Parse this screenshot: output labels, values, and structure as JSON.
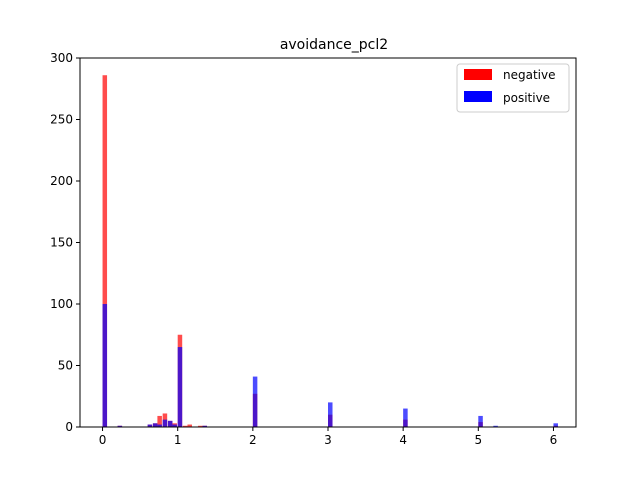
{
  "chart_data": {
    "type": "histogram",
    "title": "avoidance_pcl2",
    "xlabel": "",
    "ylabel": "",
    "xlim": [
      -0.3,
      6.3
    ],
    "ylim": [
      0,
      300
    ],
    "xticks": [
      0,
      1,
      2,
      3,
      4,
      5,
      6
    ],
    "yticks": [
      0,
      50,
      100,
      150,
      200,
      250,
      300
    ],
    "bin_width": 0.06,
    "legend": {
      "placement": "top-right"
    },
    "series": [
      {
        "name": "negative",
        "color": "#ff0000",
        "alpha": 0.7,
        "bins": [
          {
            "x": 0.0,
            "count": 286
          },
          {
            "x": 0.2,
            "count": 1
          },
          {
            "x": 0.6,
            "count": 2
          },
          {
            "x": 0.67,
            "count": 3
          },
          {
            "x": 0.73,
            "count": 9
          },
          {
            "x": 0.8,
            "count": 11
          },
          {
            "x": 0.87,
            "count": 5
          },
          {
            "x": 0.93,
            "count": 3
          },
          {
            "x": 1.0,
            "count": 75
          },
          {
            "x": 1.07,
            "count": 1
          },
          {
            "x": 1.13,
            "count": 2
          },
          {
            "x": 1.27,
            "count": 1
          },
          {
            "x": 1.33,
            "count": 1
          },
          {
            "x": 2.0,
            "count": 27
          },
          {
            "x": 3.0,
            "count": 10
          },
          {
            "x": 4.0,
            "count": 6
          },
          {
            "x": 5.0,
            "count": 4
          },
          {
            "x": 6.0,
            "count": 1
          }
        ]
      },
      {
        "name": "positive",
        "color": "#0000ff",
        "alpha": 0.7,
        "bins": [
          {
            "x": 0.0,
            "count": 100
          },
          {
            "x": 0.2,
            "count": 1
          },
          {
            "x": 0.6,
            "count": 2
          },
          {
            "x": 0.67,
            "count": 3
          },
          {
            "x": 0.73,
            "count": 2
          },
          {
            "x": 0.8,
            "count": 6
          },
          {
            "x": 0.87,
            "count": 5
          },
          {
            "x": 0.93,
            "count": 2
          },
          {
            "x": 1.0,
            "count": 65
          },
          {
            "x": 1.33,
            "count": 1
          },
          {
            "x": 2.0,
            "count": 41
          },
          {
            "x": 3.0,
            "count": 20
          },
          {
            "x": 4.0,
            "count": 15
          },
          {
            "x": 5.0,
            "count": 9
          },
          {
            "x": 5.2,
            "count": 1
          },
          {
            "x": 6.0,
            "count": 3
          }
        ]
      }
    ]
  }
}
